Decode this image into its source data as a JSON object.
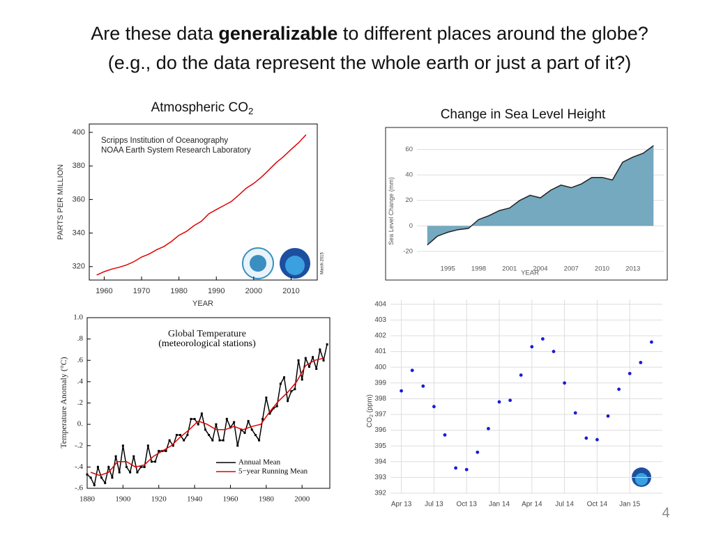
{
  "slide": {
    "title_line1": [
      "Are these data ",
      "generalizable",
      " to different places around the globe?"
    ],
    "title_line2": "(e.g., do the data represent the whole earth or just a part of it?)",
    "page_number": "4"
  },
  "chart_data": [
    {
      "type": "line",
      "title": "Atmospheric CO",
      "title_subscript": "2",
      "annotations": [
        "Scripps Institution of Oceanography",
        "NOAA Earth System Research Laboratory",
        "March 2015"
      ],
      "y_label": "PARTS PER MILLION",
      "x_label": "YEAR",
      "xlim": [
        1956,
        2017
      ],
      "ylim": [
        312,
        405
      ],
      "xticks": [
        1960,
        1970,
        1980,
        1990,
        2000,
        2010
      ],
      "yticks": [
        320,
        340,
        360,
        380,
        400
      ],
      "color": "#e00000",
      "x": [
        1958,
        1960,
        1962,
        1964,
        1966,
        1968,
        1970,
        1972,
        1974,
        1976,
        1978,
        1980,
        1982,
        1984,
        1986,
        1988,
        1990,
        1992,
        1994,
        1996,
        1998,
        2000,
        2002,
        2004,
        2006,
        2008,
        2010,
        2012,
        2014
      ],
      "values": [
        315,
        317,
        318.5,
        319.6,
        321,
        323,
        325.7,
        327.5,
        330,
        332,
        335,
        338.7,
        341,
        344.4,
        347,
        351.5,
        354,
        356.4,
        358.8,
        362.6,
        366.7,
        369.6,
        373.2,
        377.5,
        381.9,
        385.6,
        389.9,
        393.8,
        398.6
      ]
    },
    {
      "type": "area",
      "title": "Change in Sea Level Height",
      "y_label": "Sea Level Change (mm)",
      "x_label": "YEAR",
      "xlim": [
        1992,
        2016
      ],
      "ylim": [
        -25,
        69
      ],
      "xticks": [
        1995,
        1998,
        2001,
        2004,
        2007,
        2010,
        2013
      ],
      "yticks": [
        -20,
        0,
        20,
        40,
        60
      ],
      "grid": "y",
      "color": "#74a9bf",
      "line_color": "#222222",
      "x": [
        1993,
        1994,
        1995,
        1996,
        1997,
        1998,
        1999,
        2000,
        2001,
        2002,
        2003,
        2004,
        2005,
        2006,
        2007,
        2008,
        2009,
        2010,
        2011,
        2012,
        2013,
        2014,
        2015
      ],
      "values": [
        -15,
        -8,
        -5,
        -3,
        -2,
        5,
        8,
        12,
        14,
        20,
        24,
        22,
        28,
        32,
        30,
        33,
        38,
        38,
        36,
        50,
        54,
        57,
        63
      ]
    },
    {
      "type": "line",
      "title": "Global Temperature",
      "subtitle": "(meteorological stations)",
      "y_label": "Temperature Anomaly (°C)",
      "xlim": [
        1880,
        2015.5
      ],
      "ylim": [
        -0.6,
        1.0
      ],
      "xticks": [
        1880,
        1900,
        1920,
        1940,
        1960,
        1980,
        2000
      ],
      "yticks": [
        {
          "value": 1.0,
          "label": "1.0"
        },
        {
          "value": 0.8,
          "label": ".8"
        },
        {
          "value": 0.6,
          "label": ".6"
        },
        {
          "value": 0.4,
          "label": ".4"
        },
        {
          "value": 0.2,
          "label": ".2"
        },
        {
          "value": 0,
          "label": "0."
        },
        {
          "value": -0.2,
          "label": "-.2"
        },
        {
          "value": -0.4,
          "label": "-.4"
        },
        {
          "value": -0.6,
          "label": "-.6"
        }
      ],
      "series": [
        {
          "name": "Annual Mean",
          "color": "#000000",
          "marker": "square",
          "x": [
            1880,
            1882,
            1884,
            1886,
            1888,
            1890,
            1892,
            1894,
            1896,
            1898,
            1900,
            1902,
            1904,
            1906,
            1908,
            1910,
            1912,
            1914,
            1916,
            1918,
            1920,
            1922,
            1924,
            1926,
            1928,
            1930,
            1932,
            1934,
            1936,
            1938,
            1940,
            1942,
            1944,
            1946,
            1948,
            1950,
            1952,
            1954,
            1956,
            1958,
            1960,
            1962,
            1964,
            1966,
            1968,
            1970,
            1972,
            1974,
            1976,
            1978,
            1980,
            1982,
            1984,
            1986,
            1988,
            1990,
            1992,
            1994,
            1996,
            1998,
            2000,
            2002,
            2004,
            2006,
            2008,
            2010,
            2012,
            2014
          ],
          "values": [
            -0.47,
            -0.5,
            -0.57,
            -0.4,
            -0.5,
            -0.55,
            -0.4,
            -0.5,
            -0.3,
            -0.45,
            -0.2,
            -0.4,
            -0.45,
            -0.3,
            -0.45,
            -0.4,
            -0.4,
            -0.2,
            -0.35,
            -0.35,
            -0.25,
            -0.25,
            -0.25,
            -0.15,
            -0.2,
            -0.1,
            -0.1,
            -0.15,
            -0.1,
            0.05,
            0.05,
            0.0,
            0.1,
            -0.05,
            -0.1,
            -0.15,
            0.0,
            -0.15,
            -0.15,
            0.05,
            -0.03,
            0.02,
            -0.2,
            -0.05,
            -0.08,
            0.03,
            -0.05,
            -0.1,
            -0.15,
            0.05,
            0.25,
            0.1,
            0.15,
            0.17,
            0.38,
            0.44,
            0.22,
            0.31,
            0.33,
            0.6,
            0.42,
            0.62,
            0.54,
            0.63,
            0.52,
            0.7,
            0.6,
            0.75
          ]
        },
        {
          "name": "5−year Running Mean",
          "color": "#e00000",
          "x": [
            1882,
            1887,
            1892,
            1897,
            1902,
            1907,
            1912,
            1917,
            1922,
            1927,
            1932,
            1937,
            1942,
            1947,
            1952,
            1957,
            1962,
            1967,
            1972,
            1977,
            1982,
            1987,
            1992,
            1997,
            2002,
            2007,
            2012
          ],
          "values": [
            -0.45,
            -0.48,
            -0.45,
            -0.35,
            -0.35,
            -0.4,
            -0.38,
            -0.3,
            -0.25,
            -0.2,
            -0.12,
            -0.05,
            0.03,
            0.0,
            -0.05,
            -0.05,
            -0.02,
            -0.05,
            -0.02,
            0.0,
            0.12,
            0.22,
            0.3,
            0.4,
            0.55,
            0.6,
            0.62
          ]
        }
      ]
    },
    {
      "type": "scatter",
      "y_label": "CO",
      "y_label_subscript": "2",
      "y_label_suffix": " (ppm)",
      "xlim": [
        "2013-03",
        "2015-04"
      ],
      "ylim": [
        392,
        404.3
      ],
      "xticks": [
        {
          "value": "2013-04",
          "label": "Apr 13"
        },
        {
          "value": "2013-07",
          "label": "Jul 13"
        },
        {
          "value": "2013-10",
          "label": "Oct 13"
        },
        {
          "value": "2014-01",
          "label": "Jan 14"
        },
        {
          "value": "2014-04",
          "label": "Apr 14"
        },
        {
          "value": "2014-07",
          "label": "Jul 14"
        },
        {
          "value": "2014-10",
          "label": "Oct 14"
        },
        {
          "value": "2015-01",
          "label": "Jan 15"
        }
      ],
      "yticks": [
        392,
        393,
        394,
        395,
        396,
        397,
        398,
        399,
        400,
        401,
        402,
        403,
        404
      ],
      "grid": "both",
      "color": "#1a1adb",
      "x": [
        "2013-04",
        "2013-05",
        "2013-06",
        "2013-07",
        "2013-08",
        "2013-09",
        "2013-10",
        "2013-11",
        "2013-12",
        "2014-01",
        "2014-02",
        "2014-03",
        "2014-04",
        "2014-05",
        "2014-06",
        "2014-07",
        "2014-08",
        "2014-09",
        "2014-10",
        "2014-11",
        "2014-12",
        "2015-01",
        "2015-02",
        "2015-03"
      ],
      "values": [
        398.5,
        399.8,
        398.8,
        397.5,
        395.7,
        393.6,
        393.5,
        394.6,
        396.1,
        397.8,
        397.9,
        399.5,
        401.3,
        401.8,
        401.0,
        399.0,
        397.1,
        395.5,
        395.4,
        396.9,
        398.6,
        399.6,
        400.3,
        401.6
      ]
    }
  ]
}
